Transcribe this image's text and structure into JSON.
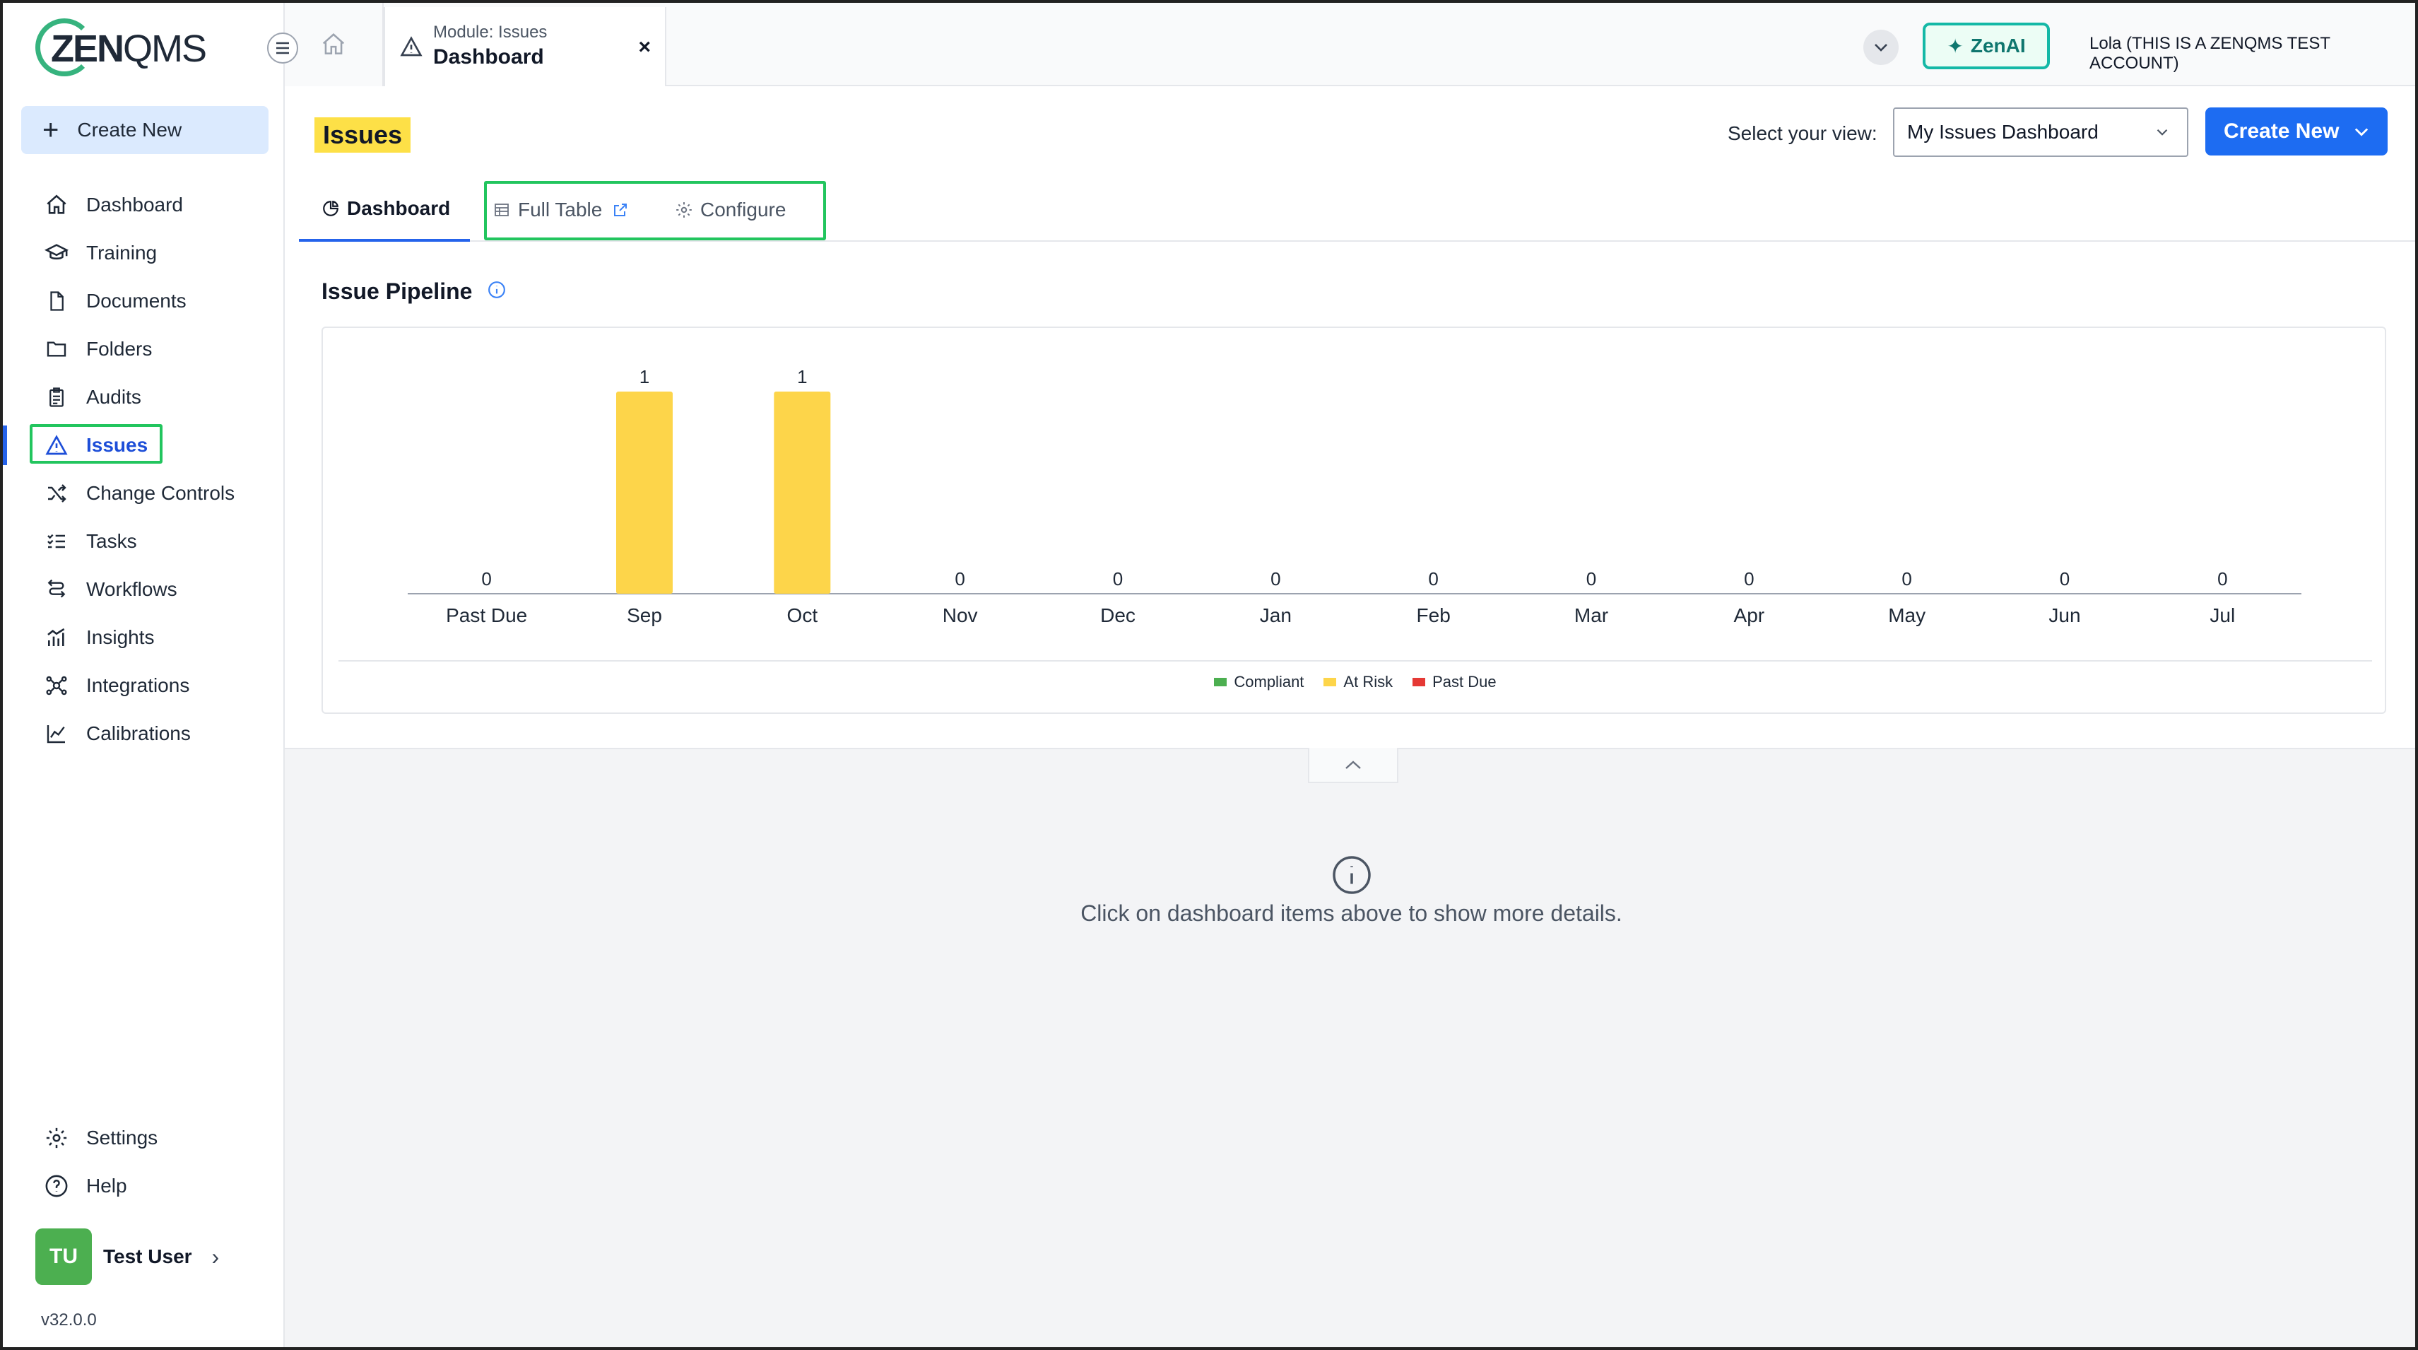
{
  "sidebar": {
    "logo_text_bold": "ZEN",
    "logo_text_thin": "QMS",
    "create_new_label": "Create New",
    "items": [
      {
        "label": "Dashboard",
        "icon": "home-icon"
      },
      {
        "label": "Training",
        "icon": "graduation-cap-icon"
      },
      {
        "label": "Documents",
        "icon": "document-icon"
      },
      {
        "label": "Folders",
        "icon": "folder-icon"
      },
      {
        "label": "Audits",
        "icon": "clipboard-icon"
      },
      {
        "label": "Issues",
        "icon": "warning-triangle-icon",
        "active": true
      },
      {
        "label": "Change Controls",
        "icon": "shuffle-icon"
      },
      {
        "label": "Tasks",
        "icon": "checklist-icon"
      },
      {
        "label": "Workflows",
        "icon": "workflow-icon"
      },
      {
        "label": "Insights",
        "icon": "bar-chart-icon"
      },
      {
        "label": "Integrations",
        "icon": "network-icon"
      },
      {
        "label": "Calibrations",
        "icon": "line-chart-icon"
      }
    ],
    "bottom_items": [
      {
        "label": "Settings",
        "icon": "gear-icon"
      },
      {
        "label": "Help",
        "icon": "help-circle-icon"
      }
    ],
    "user": {
      "initials": "TU",
      "name": "Test User"
    },
    "version": "v32.0.0"
  },
  "topbar": {
    "module_tab": {
      "small": "Module: Issues",
      "big": "Dashboard",
      "close": "×"
    },
    "zenai_label": "ZenAI",
    "account": "Lola (THIS IS A ZENQMS TEST ACCOUNT)"
  },
  "main": {
    "title": "Issues",
    "view_label": "Select your view:",
    "view_selected": "My Issues Dashboard",
    "create_new_label": "Create New",
    "tabs": {
      "dashboard": "Dashboard",
      "full_table": "Full Table",
      "configure": "Configure"
    },
    "section_title": "Issue Pipeline",
    "detail_text": "Click on dashboard items above to show more details."
  },
  "colors": {
    "accent": "#1d6cf2",
    "compliant": "#4caf50",
    "at_risk": "#fdd54a",
    "past_due": "#e53935"
  },
  "chart_data": {
    "type": "bar",
    "categories": [
      "Past Due",
      "Sep",
      "Oct",
      "Nov",
      "Dec",
      "Jan",
      "Feb",
      "Mar",
      "Apr",
      "May",
      "Jun",
      "Jul"
    ],
    "series": [
      {
        "name": "Compliant",
        "color": "#4caf50",
        "values": [
          0,
          0,
          0,
          0,
          0,
          0,
          0,
          0,
          0,
          0,
          0,
          0
        ]
      },
      {
        "name": "At Risk",
        "color": "#fdd54a",
        "values": [
          0,
          1,
          1,
          0,
          0,
          0,
          0,
          0,
          0,
          0,
          0,
          0
        ]
      },
      {
        "name": "Past Due",
        "color": "#e53935",
        "values": [
          0,
          0,
          0,
          0,
          0,
          0,
          0,
          0,
          0,
          0,
          0,
          0
        ]
      }
    ],
    "totals": [
      0,
      1,
      1,
      0,
      0,
      0,
      0,
      0,
      0,
      0,
      0,
      0
    ],
    "ylim": [
      0,
      1
    ],
    "grid": false,
    "legend": "bottom-center"
  }
}
